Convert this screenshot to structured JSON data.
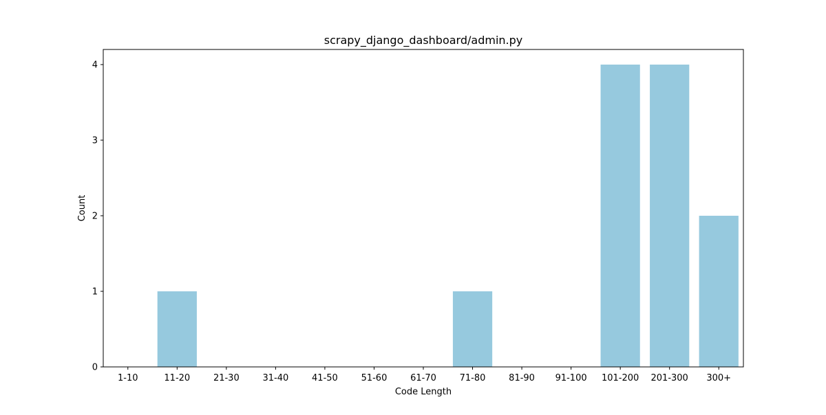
{
  "chart_data": {
    "type": "bar",
    "title": "scrapy_django_dashboard/admin.py",
    "xlabel": "Code Length",
    "ylabel": "Count",
    "categories": [
      "1-10",
      "11-20",
      "21-30",
      "31-40",
      "41-50",
      "51-60",
      "61-70",
      "71-80",
      "81-90",
      "91-100",
      "101-200",
      "201-300",
      "300+"
    ],
    "values": [
      0,
      1,
      0,
      0,
      0,
      0,
      0,
      1,
      0,
      0,
      4,
      4,
      2
    ],
    "ylim": [
      0,
      4.2
    ],
    "yticks": [
      0,
      1,
      2,
      3,
      4
    ],
    "bar_color": "#96c9de",
    "grid": false,
    "legend": "none"
  }
}
